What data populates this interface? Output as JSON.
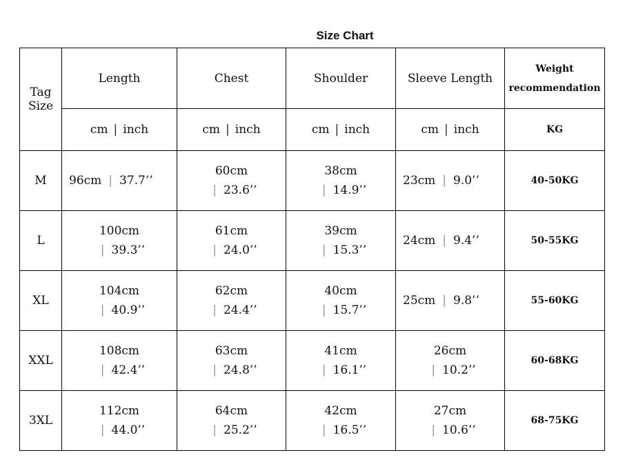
{
  "title": "Size Chart",
  "header": {
    "tag_size": [
      "Tag",
      "Size"
    ],
    "columns": [
      "Length",
      "Chest",
      "Shoulder",
      "Sleeve Length"
    ],
    "weight": [
      "Weight",
      "recommendation"
    ],
    "unit_cm": "cm",
    "unit_inch": "inch",
    "unit_sep": "|",
    "weight_unit": "KG"
  },
  "rows": [
    {
      "size": "M",
      "weight": "40-50KG",
      "cells": [
        {
          "cm": "96cm",
          "inch": "37.7’’",
          "wrap": false
        },
        {
          "cm": "60cm",
          "inch": "23.6’’",
          "wrap": true
        },
        {
          "cm": "38cm",
          "inch": "14.9’’",
          "wrap": true
        },
        {
          "cm": "23cm",
          "inch": "9.0’’",
          "wrap": false
        }
      ]
    },
    {
      "size": "L",
      "weight": "50-55KG",
      "cells": [
        {
          "cm": "100cm",
          "inch": "39.3’’",
          "wrap": true
        },
        {
          "cm": "61cm",
          "inch": "24.0’’",
          "wrap": true
        },
        {
          "cm": "39cm",
          "inch": "15.3’’",
          "wrap": true
        },
        {
          "cm": "24cm",
          "inch": "9.4’’",
          "wrap": false
        }
      ]
    },
    {
      "size": "XL",
      "weight": "55-60KG",
      "cells": [
        {
          "cm": "104cm",
          "inch": "40.9’’",
          "wrap": true
        },
        {
          "cm": "62cm",
          "inch": "24.4’’",
          "wrap": true
        },
        {
          "cm": "40cm",
          "inch": "15.7’’",
          "wrap": true
        },
        {
          "cm": "25cm",
          "inch": "9.8’’",
          "wrap": false
        }
      ]
    },
    {
      "size": "XXL",
      "weight": "60-68KG",
      "cells": [
        {
          "cm": "108cm",
          "inch": "42.4’’",
          "wrap": true
        },
        {
          "cm": "63cm",
          "inch": "24.8’’",
          "wrap": true
        },
        {
          "cm": "41cm",
          "inch": "16.1’’",
          "wrap": true
        },
        {
          "cm": "26cm",
          "inch": "10.2’’",
          "wrap": true
        }
      ]
    },
    {
      "size": "3XL",
      "weight": "68-75KG",
      "cells": [
        {
          "cm": "112cm",
          "inch": "44.0’’",
          "wrap": true
        },
        {
          "cm": "64cm",
          "inch": "25.2’’",
          "wrap": true
        },
        {
          "cm": "42cm",
          "inch": "16.5’’",
          "wrap": true
        },
        {
          "cm": "27cm",
          "inch": "10.6’’",
          "wrap": true
        }
      ]
    }
  ]
}
